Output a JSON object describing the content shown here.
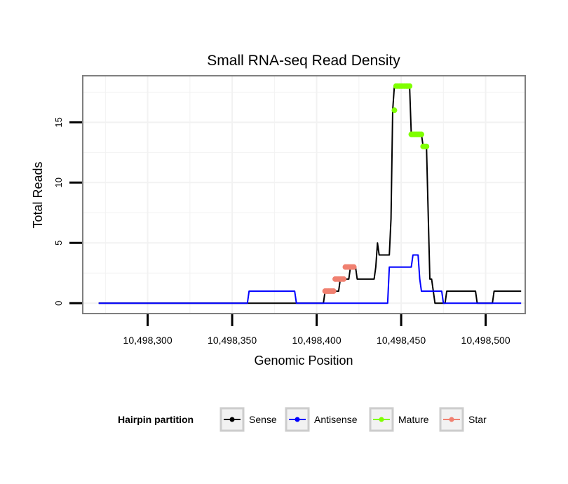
{
  "chart_data": {
    "type": "line",
    "title": "Small RNA-seq Read Density",
    "xlabel": "Genomic Position",
    "ylabel": "Total Reads",
    "xlim": [
      10498262,
      10498523
    ],
    "ylim": [
      -0.8,
      18.8
    ],
    "x_ticks": [
      10498300,
      10498350,
      10498400,
      10498450,
      10498500
    ],
    "x_tick_labels": [
      "10,498,300",
      "10,498,350",
      "10,498,400",
      "10,498,450",
      "10,498,500"
    ],
    "y_ticks": [
      0,
      5,
      10,
      15
    ],
    "y_tick_labels": [
      "0",
      "5",
      "10",
      "15"
    ],
    "grid": true,
    "series": [
      {
        "name": "Sense",
        "color": "#000000",
        "kind": "line",
        "x": [
          10498271,
          10498404,
          10498405,
          10498413,
          10498414,
          10498419,
          10498420,
          10498423,
          10498424,
          10498434,
          10498435,
          10498436,
          10498437,
          10498438,
          10498443,
          10498444,
          10498445,
          10498446,
          10498447,
          10498448,
          10498455,
          10498456,
          10498462,
          10498463,
          10498464,
          10498465,
          10498467,
          10498468,
          10498470,
          10498474,
          10498476,
          10498477,
          10498494,
          10498495,
          10498504,
          10498505,
          10498521
        ],
        "y": [
          0,
          0,
          1,
          1,
          2,
          2,
          3,
          3,
          2,
          2,
          3,
          5,
          4,
          4,
          4,
          7,
          16,
          18,
          18,
          18,
          18,
          14,
          14,
          13,
          13,
          13,
          2,
          2,
          0,
          0,
          0,
          1,
          1,
          0,
          0,
          1,
          1
        ]
      },
      {
        "name": "Antisense",
        "color": "#0000ff",
        "kind": "line",
        "x": [
          10498271,
          10498359,
          10498360,
          10498387,
          10498388,
          10498442,
          10498443,
          10498456,
          10498457,
          10498460,
          10498461,
          10498462,
          10498474,
          10498475,
          10498521
        ],
        "y": [
          0,
          0,
          1,
          1,
          0,
          0,
          3,
          3,
          4,
          4,
          2,
          1,
          1,
          0,
          0
        ]
      },
      {
        "name": "Mature",
        "color": "#7fff00",
        "kind": "points",
        "x": [
          10498446,
          10498447,
          10498448,
          10498449,
          10498450,
          10498451,
          10498452,
          10498453,
          10498454,
          10498455,
          10498456,
          10498457,
          10498458,
          10498459,
          10498460,
          10498461,
          10498462,
          10498463,
          10498464,
          10498465
        ],
        "y": [
          16,
          18,
          18,
          18,
          18,
          18,
          18,
          18,
          18,
          18,
          14,
          14,
          14,
          14,
          14,
          14,
          14,
          13,
          13,
          13
        ]
      },
      {
        "name": "Star",
        "color": "#f08070",
        "kind": "points",
        "x": [
          10498405,
          10498406,
          10498407,
          10498408,
          10498409,
          10498410,
          10498411,
          10498412,
          10498413,
          10498414,
          10498415,
          10498416,
          10498417,
          10498418,
          10498419,
          10498420,
          10498421,
          10498422
        ],
        "y": [
          1,
          1,
          1,
          1,
          1,
          1,
          2,
          2,
          2,
          2,
          2,
          2,
          3,
          3,
          3,
          3,
          3,
          3
        ]
      }
    ],
    "legend": {
      "title": "Hairpin partition",
      "position": "bottom",
      "items": [
        {
          "label": "Sense",
          "color": "#000000"
        },
        {
          "label": "Antisense",
          "color": "#0000ff"
        },
        {
          "label": "Mature",
          "color": "#7fff00"
        },
        {
          "label": "Star",
          "color": "#f08070"
        }
      ]
    },
    "colors": {
      "panel_border": "#7f7f7f",
      "grid": "#f2f2f2"
    }
  }
}
